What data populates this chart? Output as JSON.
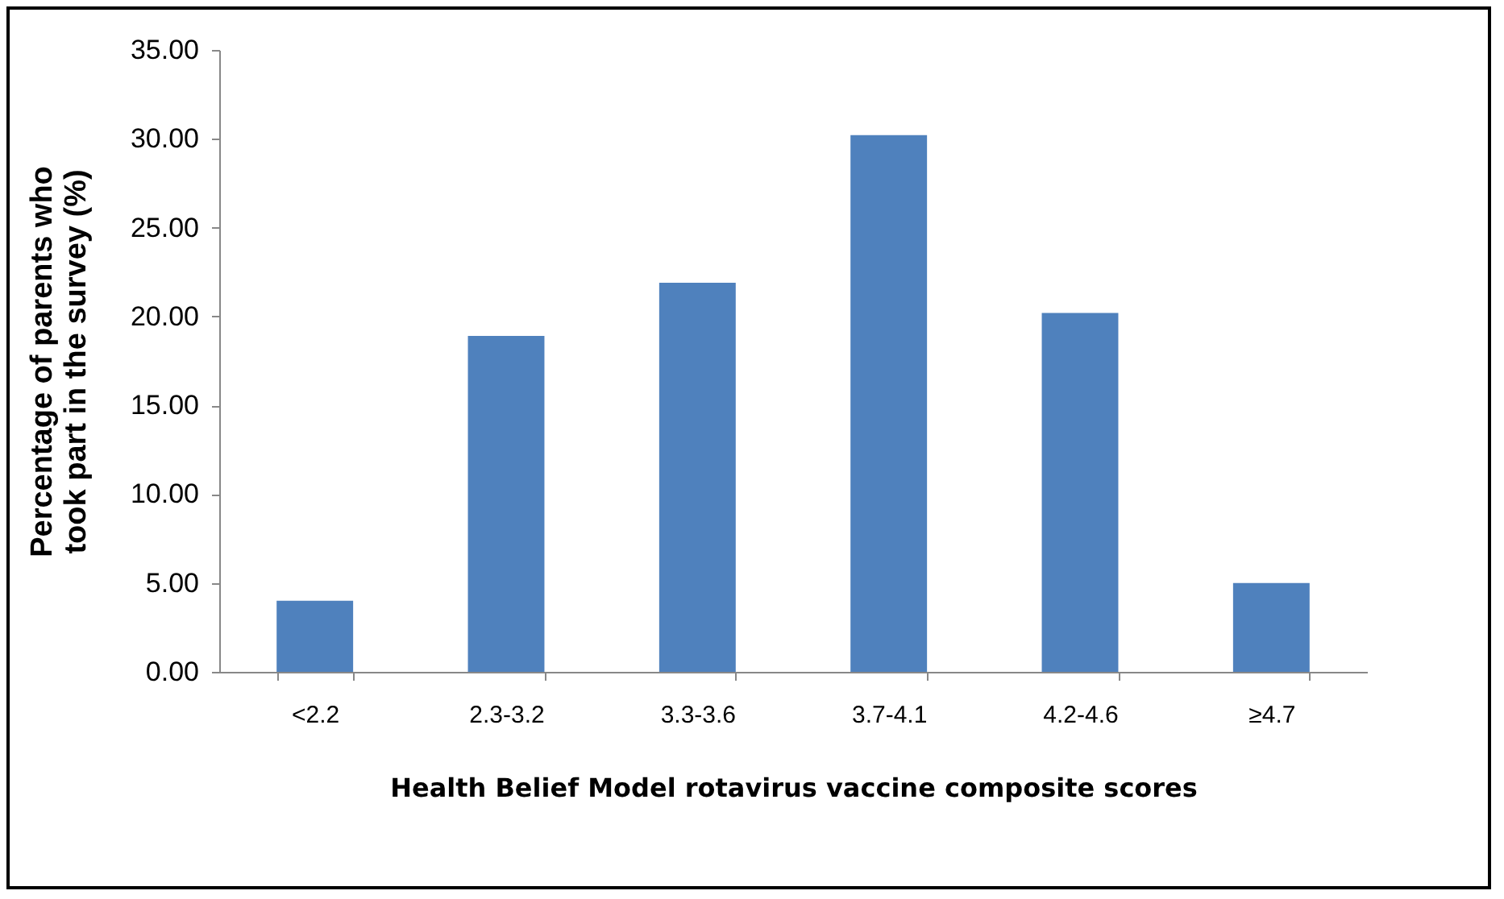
{
  "chart_data": {
    "type": "bar",
    "xlabel": "Health Belief Model rotavirus vaccine composite scores",
    "ylabel": "Percentage of parents who took part in the survey  (%)",
    "categories": [
      "<2.2",
      "2.3-3.2",
      "3.3-3.6",
      "3.7-4.1",
      "4.2-4.6",
      "≥4.7"
    ],
    "values": [
      4.0,
      18.9,
      21.9,
      30.2,
      20.2,
      5.0
    ],
    "color": "#4f81bd",
    "ylim": [
      0,
      35
    ],
    "yticks": [
      {
        "value": 0,
        "label": "0.00"
      },
      {
        "value": 5,
        "label": "5.00"
      },
      {
        "value": 10,
        "label": "10.00"
      },
      {
        "value": 15,
        "label": "15.00"
      },
      {
        "value": 20,
        "label": "20.00"
      },
      {
        "value": 25,
        "label": "25.00"
      },
      {
        "value": 30,
        "label": "30.00"
      },
      {
        "value": 35,
        "label": "35.00"
      }
    ],
    "grid": false
  }
}
